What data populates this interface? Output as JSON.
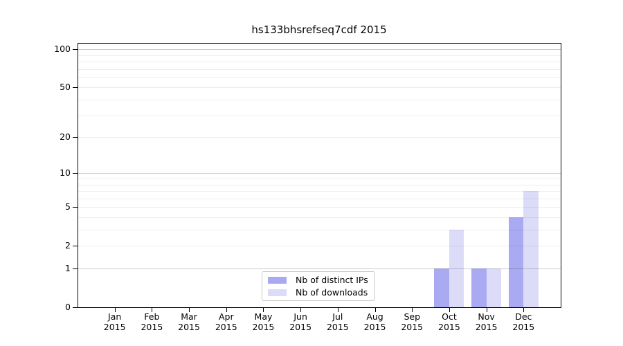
{
  "chart_data": {
    "type": "bar",
    "title": "hs133bhsrefseq7cdf 2015",
    "categories": [
      "Jan 2015",
      "Feb 2015",
      "Mar 2015",
      "Apr 2015",
      "May 2015",
      "Jun 2015",
      "Jul 2015",
      "Aug 2015",
      "Sep 2015",
      "Oct 2015",
      "Nov 2015",
      "Dec 2015"
    ],
    "series": [
      {
        "name": "Nb of distinct IPs",
        "color": "#aaaaf2",
        "values": [
          0,
          0,
          0,
          0,
          0,
          0,
          0,
          0,
          0,
          1,
          1,
          4
        ]
      },
      {
        "name": "Nb of downloads",
        "color": "#dcdcf8",
        "values": [
          0,
          0,
          0,
          0,
          0,
          0,
          0,
          0,
          0,
          3,
          1,
          7
        ]
      }
    ],
    "yscale": "log10(1+x)",
    "ylim": [
      0,
      112
    ],
    "yticks": [
      100,
      50,
      20,
      10,
      5,
      2,
      1,
      0
    ],
    "major_gridlines": [
      1,
      10,
      100
    ],
    "minor_gridlines": [
      2,
      3,
      4,
      5,
      6,
      7,
      8,
      9,
      20,
      30,
      40,
      50,
      60,
      70,
      80,
      90
    ],
    "grid": "horizontal",
    "legend_position": "lower center",
    "colors": {
      "axis": "#000000",
      "grid_major": "#cccccc",
      "grid_minor": "#ededed",
      "background": "#ffffff",
      "legend_border": "#c8c8c8"
    }
  }
}
